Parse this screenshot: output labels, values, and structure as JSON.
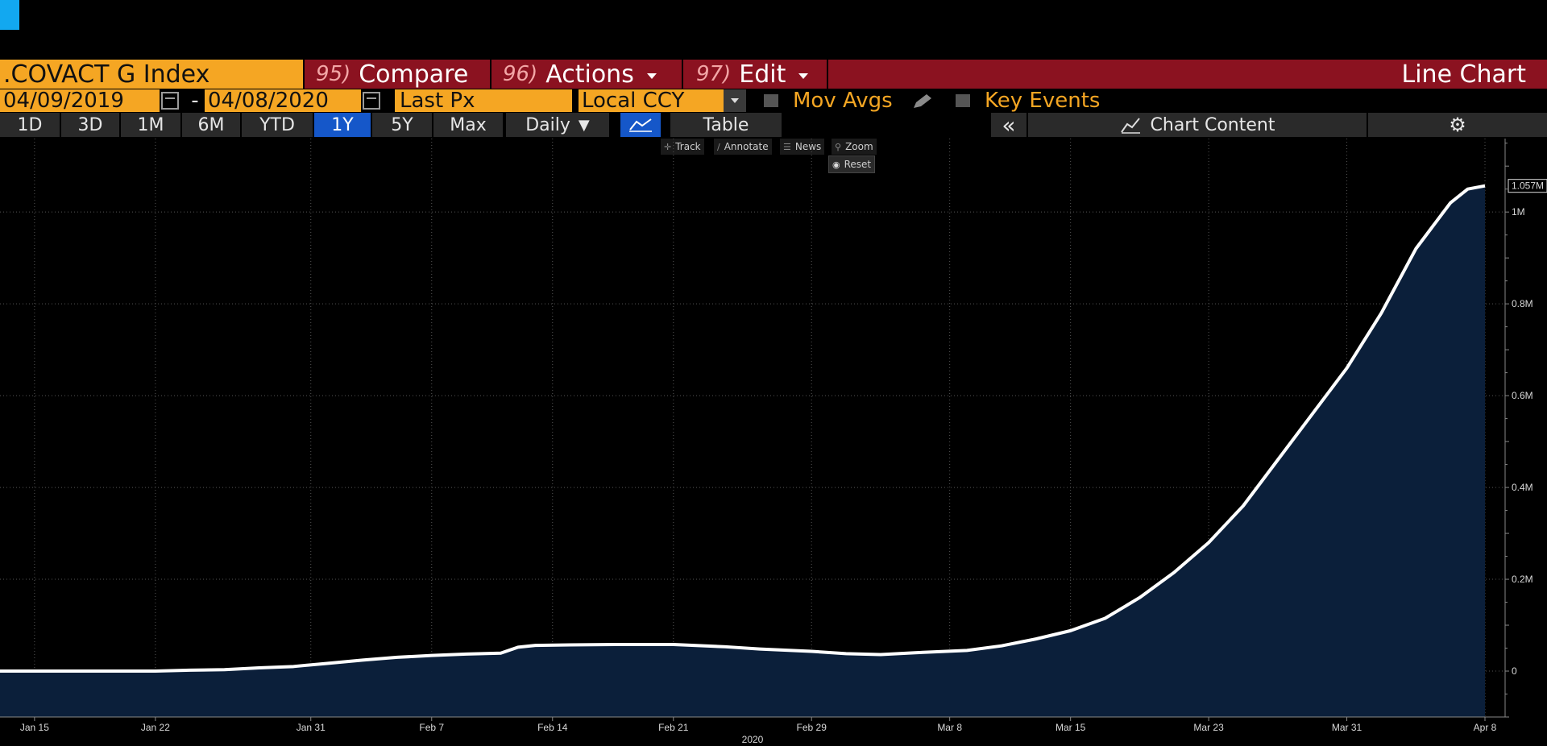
{
  "header": {
    "ticker": ".COVACT G Index",
    "compare": {
      "num": "95)",
      "label": "Compare"
    },
    "actions": {
      "num": "96)",
      "label": "Actions"
    },
    "edit": {
      "num": "97)",
      "label": "Edit"
    },
    "chart_type": "Line Chart"
  },
  "range": {
    "start": "04/09/2019",
    "dash": "-",
    "end": "04/08/2020",
    "field": "Last Px",
    "currency": "Local CCY",
    "mov_avgs": "Mov Avgs",
    "key_events": "Key Events"
  },
  "periods": [
    "1D",
    "3D",
    "1M",
    "6M",
    "YTD",
    "1Y",
    "5Y",
    "Max"
  ],
  "active_period": "1Y",
  "toolbar": {
    "frequency": "Daily",
    "table": "Table",
    "collapse": "«",
    "chart_content": "Chart Content"
  },
  "chart_tools": {
    "track": "Track",
    "annotate": "Annotate",
    "news": "News",
    "zoom": "Zoom",
    "reset": "Reset"
  },
  "colors": {
    "accent_orange": "#f5a623",
    "header_red": "#8b1220",
    "active_blue": "#1557c9",
    "area_fill": "#0b1f3a",
    "line": "#ffffff"
  },
  "chart_data": {
    "type": "area",
    "year_label": "2020",
    "last_value_label": "1.057M",
    "x_ticks": [
      "Jan 15",
      "Jan 22",
      "Jan 31",
      "Feb 7",
      "Feb 14",
      "Feb 21",
      "Feb 29",
      "Mar 8",
      "Mar 15",
      "Mar 23",
      "Mar 31",
      "Apr 8"
    ],
    "y_ticks": [
      {
        "value": 0,
        "label": "0"
      },
      {
        "value": 200000,
        "label": "0.2M"
      },
      {
        "value": 400000,
        "label": "0.4M"
      },
      {
        "value": 600000,
        "label": "0.6M"
      },
      {
        "value": 800000,
        "label": "0.8M"
      },
      {
        "value": 1000000,
        "label": "1M"
      }
    ],
    "ylim": [
      -100000,
      1160000
    ],
    "grid": true,
    "series": [
      {
        "x": [
          "2020-01-13",
          "2020-01-22",
          "2020-01-24",
          "2020-01-26",
          "2020-01-28",
          "2020-01-30",
          "2020-02-01",
          "2020-02-03",
          "2020-02-05",
          "2020-02-07",
          "2020-02-09",
          "2020-02-11",
          "2020-02-12",
          "2020-02-13",
          "2020-02-15",
          "2020-02-18",
          "2020-02-21",
          "2020-02-24",
          "2020-02-26",
          "2020-02-29",
          "2020-03-02",
          "2020-03-04",
          "2020-03-06",
          "2020-03-09",
          "2020-03-11",
          "2020-03-13",
          "2020-03-15",
          "2020-03-17",
          "2020-03-19",
          "2020-03-21",
          "2020-03-23",
          "2020-03-25",
          "2020-03-27",
          "2020-03-29",
          "2020-03-31",
          "2020-04-02",
          "2020-04-04",
          "2020-04-06",
          "2020-04-07",
          "2020-04-08"
        ],
        "values": [
          0,
          0,
          2000,
          3000,
          7000,
          10000,
          17000,
          24000,
          30000,
          34000,
          37000,
          39000,
          52000,
          56000,
          57000,
          58000,
          58000,
          53000,
          48000,
          43000,
          38000,
          36000,
          40000,
          45000,
          55000,
          70000,
          88000,
          115000,
          160000,
          215000,
          280000,
          360000,
          460000,
          560000,
          660000,
          780000,
          920000,
          1020000,
          1050000,
          1057000
        ]
      }
    ]
  }
}
